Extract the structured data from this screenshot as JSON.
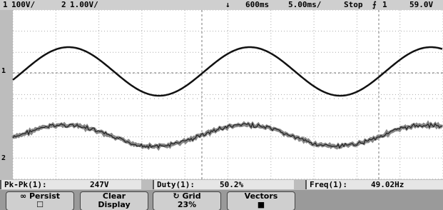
{
  "status_bar": {
    "ch1_label": "1",
    "ch1_scale": "100V/",
    "ch2_label": "2",
    "ch2_scale": "1.00V/",
    "time_offset": "600ms",
    "time_scale": "5.00ms/",
    "run_state": "Stop",
    "trigger_source": "1",
    "trigger_level": "59.0V"
  },
  "measurements": [
    {
      "label": "Pk-Pk(1):",
      "value": "247V"
    },
    {
      "label": "Duty(1):",
      "value": "50.2%"
    },
    {
      "label": "Freq(1):",
      "value": "49.02Hz"
    }
  ],
  "softkeys": [
    {
      "label": "Persist"
    },
    {
      "label": "Clear Display"
    },
    {
      "label": "Grid",
      "value": "23%"
    },
    {
      "label": "Vectors"
    }
  ]
}
